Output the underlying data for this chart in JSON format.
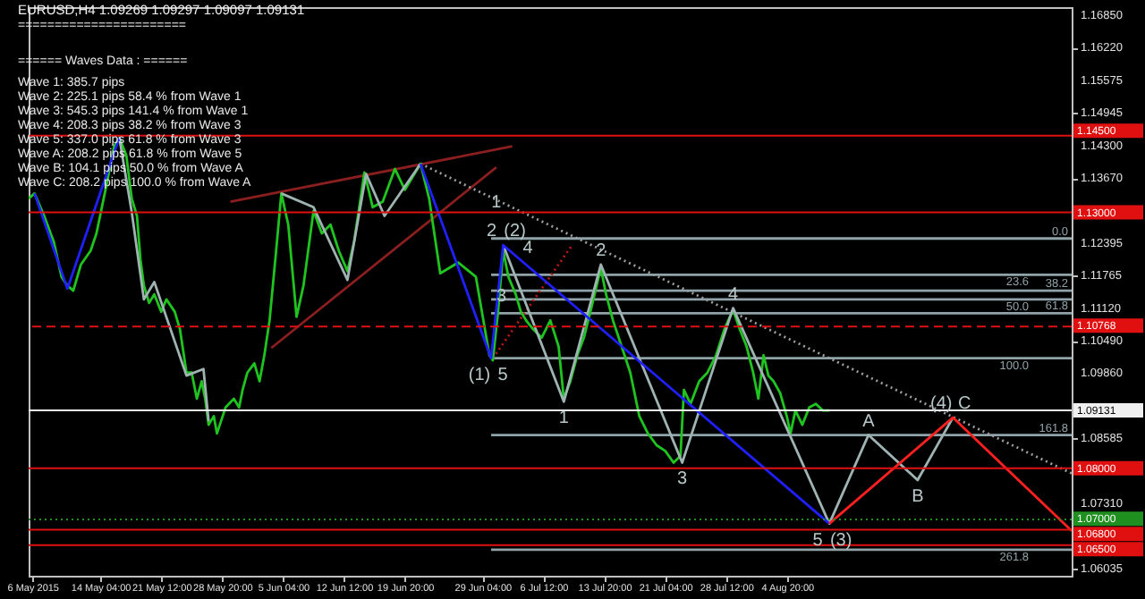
{
  "chart_data": {
    "type": "line",
    "title": "EURUSD,H4 1.09269 1.09297 1.09097 1.09131",
    "annotations": [
      "=======================",
      "====== Waves Data : ======",
      "Wave 1: 385.7 pips",
      "Wave 2: 225.1 pips 58.4 % from Wave 1",
      "Wave 3: 545.3 pips 141.4 % from Wave 1",
      "Wave 4: 208.3 pips 38.2 % from Wave 3",
      "Wave 5: 337.0 pips 61.8 % from Wave 3",
      "Wave A: 208.2 pips 61.8 % from Wave 5",
      "Wave B: 104.1 pips 50.0 % from Wave A",
      "Wave C: 208.2 pips 100.0 % from Wave A",
      {
        "text": "1",
        "x": "2015-06-30T20:00",
        "y": 1.1337
      },
      {
        "text": "2",
        "x": "2015-07-01T16:00",
        "y": 1.1236
      },
      {
        "text": "(2)",
        "x": "2015-07-01T16:00",
        "y": 1.1236
      },
      {
        "text": "4",
        "x": "2015-07-04T15:00",
        "y": 1.1249
      },
      {
        "text": "3",
        "x": "2015-07-01T11:00",
        "y": 1.1154
      },
      {
        "text": "(1)",
        "x": "2015-06-30T05:00",
        "y": 1.1015
      },
      {
        "text": "5",
        "x": "2015-06-30T05:00",
        "y": 1.1015
      },
      {
        "text": "1",
        "x": "2015-07-08T23:00",
        "y": 1.093
      },
      {
        "text": "2",
        "x": "2015-07-13T10:00",
        "y": 1.1198
      },
      {
        "text": "4",
        "x": "2015-07-29T08:00",
        "y": 1.1113
      },
      {
        "text": "3",
        "x": "2015-07-23T05:00",
        "y": 1.0811
      },
      {
        "text": "A",
        "x": "2015-08-14T15:00",
        "y": 1.0865
      },
      {
        "text": "B",
        "x": "2015-08-20T13:00",
        "y": 1.0777
      },
      {
        "text": "(4)",
        "x": "2015-08-24T19:00",
        "y": 1.0899
      },
      {
        "text": "C",
        "x": "2015-08-24T19:00",
        "y": 1.0899
      },
      {
        "text": "5",
        "x": "2015-08-09T22:00",
        "y": 1.0692
      },
      {
        "text": "(3)",
        "x": "2015-08-09T22:00",
        "y": 1.0692
      }
    ],
    "xlim": [
      "2015-05-05T13:00",
      "2015-09-08T02:00"
    ],
    "ylim": [
      1.059,
      1.1701
    ],
    "xticks": [
      {
        "value": "2015-05-06T00:00",
        "label": "6 May 2015"
      },
      {
        "value": "2015-05-14T04:00",
        "label": "14 May 04:00"
      },
      {
        "value": "2015-05-21T12:00",
        "label": "21 May 12:00"
      },
      {
        "value": "2015-05-28T20:00",
        "label": "28 May 20:00"
      },
      {
        "value": "2015-06-05T04:00",
        "label": "5 Jun 04:00"
      },
      {
        "value": "2015-06-12T12:00",
        "label": "12 Jun 12:00"
      },
      {
        "value": "2015-06-19T20:00",
        "label": "19 Jun 20:00"
      },
      {
        "value": "2015-06-29T04:00",
        "label": "29 Jun 04:00"
      },
      {
        "value": "2015-07-06T12:00",
        "label": "6 Jul 12:00"
      },
      {
        "value": "2015-07-13T20:00",
        "label": "13 Jul 20:00"
      },
      {
        "value": "2015-07-21T04:00",
        "label": "21 Jul 04:00"
      },
      {
        "value": "2015-07-28T12:00",
        "label": "28 Jul 12:00"
      },
      {
        "value": "2015-08-04T20:00",
        "label": "4 Aug 20:00"
      }
    ],
    "yticks": [
      {
        "value": 1.1685,
        "label": "1.16850"
      },
      {
        "value": 1.1622,
        "label": "1.16220"
      },
      {
        "value": 1.15575,
        "label": "1.15575"
      },
      {
        "value": 1.14945,
        "label": "1.14945"
      },
      {
        "value": 1.143,
        "label": "1.14300"
      },
      {
        "value": 1.1367,
        "label": "1.13670"
      },
      {
        "value": 1.12395,
        "label": "1.12395"
      },
      {
        "value": 1.11765,
        "label": "1.11765"
      },
      {
        "value": 1.1112,
        "label": "1.11120"
      },
      {
        "value": 1.1049,
        "label": "1.10490"
      },
      {
        "value": 1.0986,
        "label": "1.09860"
      },
      {
        "value": 1.08585,
        "label": "1.08585"
      },
      {
        "value": 1.0731,
        "label": "1.07310"
      },
      {
        "value": 1.06035,
        "label": "1.06035"
      }
    ],
    "ref_lines": [
      {
        "axis": "y",
        "value": 1.145,
        "label": "1.14500",
        "color": "#e01010"
      },
      {
        "axis": "y",
        "value": 1.13,
        "label": "1.13000",
        "color": "#e01010"
      },
      {
        "axis": "y",
        "value": 1.10768,
        "label": "1.10768",
        "color": "#e01010",
        "line_style": "dashed"
      },
      {
        "axis": "y",
        "value": 1.09131,
        "label": "1.09131",
        "color": "#f0f0f0"
      },
      {
        "axis": "y",
        "value": 1.08,
        "label": "1.08000",
        "color": "#e01010"
      },
      {
        "axis": "y",
        "value": 1.07,
        "label": "1.07000",
        "color": "#1f8f1f",
        "line_style": "dotted"
      },
      {
        "axis": "y",
        "value": 1.068,
        "label": "1.06800",
        "color": "#e01010"
      },
      {
        "axis": "y",
        "value": 1.065,
        "label": "1.06500",
        "color": "#e01010"
      }
    ],
    "series": [
      {
        "name": "0.0",
        "color": "#8fa3a8",
        "x": [
          "2015-06-30T05:00",
          "2015-09-08T02:00"
        ],
        "values": [
          1.1249,
          1.1249
        ]
      },
      {
        "name": "23.6",
        "color": "#8fa3a8",
        "x": [
          "2015-06-30T05:00",
          "2015-09-08T02:00"
        ],
        "values": [
          1.1178,
          1.1178
        ]
      },
      {
        "name": "38.2",
        "color": "#8fa3a8",
        "x": [
          "2015-06-30T05:00",
          "2015-09-08T02:00"
        ],
        "values": [
          1.1147,
          1.1147
        ]
      },
      {
        "name": "50.0",
        "color": "#8fa3a8",
        "x": [
          "2015-06-30T05:00",
          "2015-09-08T02:00"
        ],
        "values": [
          1.113,
          1.113
        ]
      },
      {
        "name": "61.8",
        "color": "#8fa3a8",
        "x": [
          "2015-06-30T05:00",
          "2015-09-08T02:00"
        ],
        "values": [
          1.1103,
          1.1103
        ]
      },
      {
        "name": "100.0",
        "color": "#8fa3a8",
        "x": [
          "2015-06-30T05:00",
          "2015-09-08T02:00"
        ],
        "values": [
          1.1015,
          1.1015
        ]
      },
      {
        "name": "161.8",
        "color": "#8fa3a8",
        "x": [
          "2015-06-30T05:00",
          "2015-09-08T02:00"
        ],
        "values": [
          1.0865,
          1.0865
        ]
      },
      {
        "name": "261.8",
        "color": "#8fa3a8",
        "x": [
          "2015-06-30T05:00",
          "2015-09-08T02:00"
        ],
        "values": [
          1.0641,
          1.0641
        ]
      },
      {
        "color": "#8b1e1e",
        "x": [
          "2015-05-29T20:00",
          "2015-07-02T18:00"
        ],
        "values": [
          1.1321,
          1.1429
        ]
      },
      {
        "color": "#8b1e1e",
        "x": [
          "2015-06-03T18:00",
          "2015-06-30T20:00"
        ],
        "values": [
          1.1035,
          1.1388
        ]
      },
      {
        "color": "#a0a0a0",
        "line_style": "dotted",
        "x": [
          "2015-06-21T17:00",
          "2015-09-08T02:00"
        ],
        "values": [
          1.1395,
          1.079
        ]
      },
      {
        "color": "#c01818",
        "line_style": "dotted",
        "x": [
          "2015-06-30T10:00",
          "2015-07-09T23:00"
        ],
        "values": [
          1.1015,
          1.1236
        ]
      },
      {
        "color": "#1fc41f",
        "x": [
          "2015-05-05T13:00",
          "2015-05-06T06:00",
          "2015-05-07T10:00",
          "2015-05-08T14:00",
          "2015-05-09T12:00",
          "2015-05-10T05:00",
          "2015-05-10T22:00",
          "2015-05-11T20:00",
          "2015-05-13T00:00",
          "2015-05-13T17:00",
          "2015-05-14T19:00",
          "2015-05-15T20:00",
          "2015-05-16T11:00",
          "2015-05-17T07:00",
          "2015-05-17T23:00",
          "2015-05-18T14:00",
          "2015-05-19T00:00",
          "2015-05-19T10:00",
          "2015-05-20T01:00",
          "2015-05-20T16:00",
          "2015-05-21T12:00",
          "2015-05-22T03:00",
          "2015-05-23T03:00",
          "2015-05-23T18:00",
          "2015-05-24T13:00",
          "2015-05-25T04:00",
          "2015-05-25T19:00",
          "2015-05-26T09:00",
          "2015-05-26T19:00",
          "2015-05-27T05:00",
          "2015-05-27T20:00",
          "2015-05-28T05:00",
          "2015-05-29T06:00",
          "2015-05-30T06:00",
          "2015-05-30T21:00",
          "2015-05-31T07:00",
          "2015-05-31T21:00",
          "2015-06-01T17:00",
          "2015-06-02T08:00",
          "2015-06-02T22:00",
          "2015-06-03T13:00",
          "2015-06-04T08:00",
          "2015-06-04T23:00",
          "2015-06-05T19:00",
          "2015-06-06T19:00",
          "2015-06-07T15:00",
          "2015-06-08T20:00",
          "2015-06-09T20:00",
          "2015-06-10T21:00",
          "2015-06-11T21:00",
          "2015-06-12T22:00",
          "2015-06-13T17:00",
          "2015-06-14T23:00",
          "2015-06-15T23:00",
          "2015-06-17T04:00",
          "2015-06-18T15:00",
          "2015-06-19T20:00",
          "2015-06-21T17:00",
          "2015-06-22T18:00",
          "2015-06-24T02:00",
          "2015-06-26T06:00",
          "2015-06-28T09:00",
          "2015-06-30T00:00",
          "2015-06-30T10:00",
          "2015-07-01T01:00",
          "2015-07-01T16:00",
          "2015-07-02T07:00",
          "2015-07-03T04:00",
          "2015-07-03T19:00",
          "2015-07-04T10:00",
          "2015-07-05T06:00",
          "2015-07-06T07:00",
          "2015-07-07T08:00",
          "2015-07-08T08:00",
          "2015-07-08T23:00",
          "2015-07-09T18:00",
          "2015-07-10T14:00",
          "2015-07-11T09:00",
          "2015-07-12T10:00",
          "2015-07-13T10:00",
          "2015-07-14T01:00",
          "2015-07-14T21:00",
          "2015-07-15T22:00",
          "2015-07-16T23:00",
          "2015-07-18T01:00",
          "2015-07-19T02:00",
          "2015-07-20T03:00",
          "2015-07-21T04:00",
          "2015-07-22T04:00",
          "2015-07-23T00:00",
          "2015-07-23T10:00",
          "2015-07-24T05:00",
          "2015-07-25T06:00",
          "2015-07-26T06:00",
          "2015-07-27T07:00",
          "2015-07-28T07:00",
          "2015-07-29T08:00",
          "2015-07-30T03:00",
          "2015-07-30T23:00",
          "2015-07-31T18:00",
          "2015-08-01T09:00",
          "2015-08-02T00:00",
          "2015-08-02T14:00",
          "2015-08-03T05:00",
          "2015-08-04T00:00",
          "2015-08-04T19:00",
          "2015-08-05T06:00",
          "2015-08-05T20:00",
          "2015-08-06T16:00",
          "2015-08-07T12:00",
          "2015-08-08T07:00",
          "2015-08-09T03:00",
          "2015-08-09T22:00"
        ],
        "values": [
          1.1327,
          1.1337,
          1.1293,
          1.1242,
          1.1174,
          1.1157,
          1.1147,
          1.1198,
          1.1225,
          1.1259,
          1.1344,
          1.1429,
          1.1446,
          1.1412,
          1.1327,
          1.1293,
          1.1208,
          1.1157,
          1.1123,
          1.114,
          1.1106,
          1.113,
          1.1106,
          1.1072,
          1.0987,
          1.0987,
          1.0936,
          1.097,
          1.0936,
          1.0885,
          1.0902,
          1.0868,
          1.0919,
          1.0936,
          1.0919,
          1.0953,
          1.0987,
          1.1005,
          1.097,
          1.1021,
          1.1089,
          1.1225,
          1.1337,
          1.1276,
          1.1096,
          1.1157,
          1.1303,
          1.1259,
          1.1276,
          1.1225,
          1.1185,
          1.1242,
          1.1378,
          1.131,
          1.1321,
          1.1385,
          1.1344,
          1.1395,
          1.1327,
          1.1181,
          1.1202,
          1.1174,
          1.1021,
          1.1011,
          1.1106,
          1.1225,
          1.1174,
          1.114,
          1.1106,
          1.1089,
          1.1072,
          1.1055,
          1.1089,
          1.1038,
          1.0936,
          1.097,
          1.1021,
          1.1055,
          1.1123,
          1.1191,
          1.114,
          1.1089,
          1.1038,
          1.0987,
          1.0902,
          1.0868,
          1.0845,
          1.0834,
          1.0811,
          1.0824,
          1.0953,
          1.0926,
          1.097,
          1.0987,
          1.1021,
          1.1072,
          1.111,
          1.1072,
          1.1038,
          1.0987,
          1.0936,
          1.1021,
          1.0981,
          1.097,
          1.0947,
          1.0902,
          1.0868,
          1.0913,
          1.0885,
          1.0919,
          1.0926,
          1.0913,
          1.0913
        ]
      },
      {
        "color": "#9fb3b3",
        "x": [
          "2015-05-16T11:00",
          "2015-05-17T23:00",
          "2015-05-19T10:00",
          "2015-05-20T16:00",
          "2015-05-24T13:00",
          "2015-05-26T14:00",
          "2015-05-27T05:00"
        ],
        "values": [
          1.1446,
          1.13,
          1.113,
          1.1164,
          1.0981,
          1.0994,
          1.0892
        ]
      },
      {
        "color": "#9fb3b3",
        "x": [
          "2015-06-04T23:00",
          "2015-06-08T20:00",
          "2015-06-12T22:00",
          "2015-06-15T04:00",
          "2015-06-17T09:00",
          "2015-06-21T17:00"
        ],
        "values": [
          1.1337,
          1.131,
          1.1168,
          1.1375,
          1.1293,
          1.1395
        ]
      },
      {
        "color": "#9fb3b3",
        "x": [
          "2015-07-01T16:00",
          "2015-07-08T23:00",
          "2015-07-13T10:00",
          "2015-07-23T05:00",
          "2015-07-29T08:00",
          "2015-08-09T22:00",
          "2015-08-14T15:00",
          "2015-08-20T13:00",
          "2015-08-24T19:00"
        ],
        "values": [
          1.1236,
          1.093,
          1.1198,
          1.0811,
          1.1113,
          1.0692,
          1.0865,
          1.0777,
          1.0899
        ]
      },
      {
        "color": "#2020ff",
        "x": [
          "2015-05-06T06:00",
          "2015-05-10T05:00",
          "2015-05-16T11:00"
        ],
        "values": [
          1.1337,
          1.1151,
          1.1446
        ]
      },
      {
        "color": "#2020ff",
        "x": [
          "2015-06-21T17:00",
          "2015-06-30T05:00",
          "2015-07-01T16:00",
          "2015-08-09T22:00"
        ],
        "values": [
          1.1395,
          1.1015,
          1.1236,
          1.0692
        ]
      },
      {
        "color": "#ff2020",
        "x": [
          "2015-08-09T22:00",
          "2015-08-24T19:00",
          "2015-09-08T02:00"
        ],
        "values": [
          1.0692,
          1.0899,
          1.0678
        ]
      }
    ]
  }
}
